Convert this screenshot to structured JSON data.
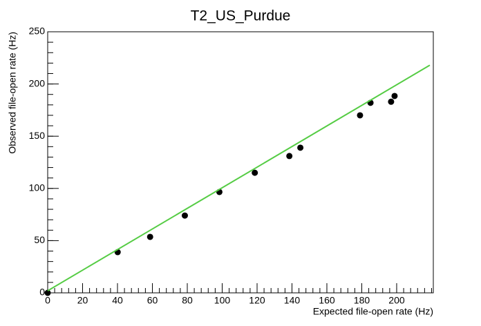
{
  "chart_data": {
    "type": "scatter",
    "title": "T2_US_Purdue",
    "x_label": "Expected file-open rate (Hz)",
    "y_label": "Observed file-open rate (Hz)",
    "xlim": [
      0,
      221
    ],
    "ylim": [
      0,
      250
    ],
    "xticks": [
      0,
      20,
      40,
      60,
      80,
      100,
      120,
      140,
      160,
      180,
      200
    ],
    "yticks": [
      0,
      50,
      100,
      150,
      200,
      250
    ],
    "series": [
      {
        "type": "scatter",
        "color": "#000000",
        "x": [
          0,
          40.1,
          58.7,
          78.6,
          98.4,
          118.7,
          138.5,
          144.8,
          179,
          185,
          196.8,
          198.8
        ],
        "values": [
          0,
          39,
          53.6,
          74,
          96.6,
          115,
          131,
          139,
          170,
          182,
          183,
          188.5
        ]
      },
      {
        "type": "line",
        "color": "#55cc44",
        "x": [
          0,
          219
        ],
        "values": [
          2,
          218
        ]
      }
    ]
  }
}
